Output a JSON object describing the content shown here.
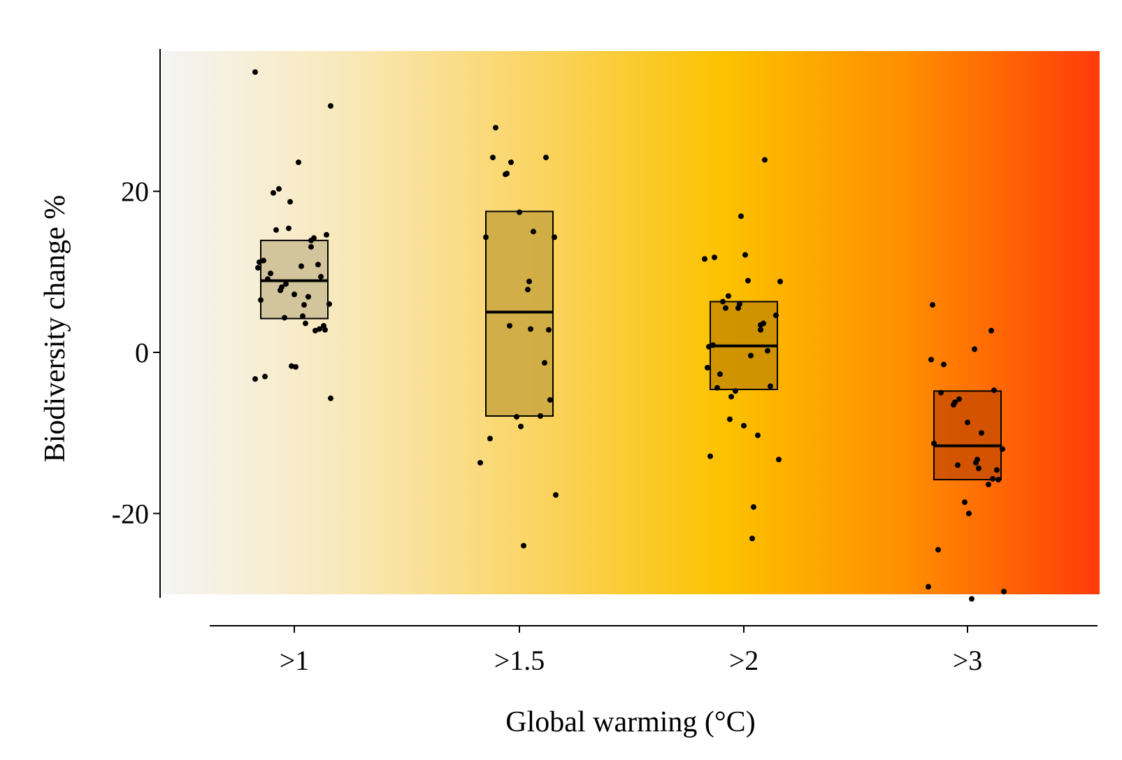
{
  "chart_data": {
    "type": "box",
    "xlabel": "Global warming (°C)",
    "ylabel": "Biodiversity change %",
    "categories": [
      ">1",
      ">1.5",
      ">2",
      ">3"
    ],
    "ylim": [
      -30.5,
      37
    ],
    "yticks": [
      -20,
      0,
      20
    ],
    "background_gradient": [
      "#f4f4f4",
      "#f9e8b8",
      "#fad463",
      "#fcc200",
      "#ff8c00",
      "#ff3b0a"
    ],
    "boxes": [
      {
        "category": ">1",
        "q1": 4.2,
        "median": 8.9,
        "q3": 13.9,
        "fill": "#c9bc92"
      },
      {
        "category": ">1.5",
        "q1": -7.9,
        "median": 5.0,
        "q3": 17.5,
        "fill": "#c8a540"
      },
      {
        "category": ">2",
        "q1": -4.6,
        "median": 0.8,
        "q3": 6.3,
        "fill": "#c48a00"
      },
      {
        "category": ">3",
        "q1": -15.8,
        "median": -11.6,
        "q3": -4.8,
        "fill": "#c94d00"
      }
    ],
    "points": [
      {
        "category": ">1",
        "values": [
          34.8,
          30.6,
          23.6,
          20.3,
          19.8,
          18.7,
          15.4,
          15.2,
          14.6,
          14.2,
          13.9,
          13.1,
          11.4,
          11.2,
          10.9,
          10.7,
          10.5,
          9.8,
          9.4,
          9.1,
          8.5,
          8.1,
          7.7,
          7.2,
          6.9,
          6.5,
          6.0,
          5.9,
          4.5,
          4.3,
          3.6,
          3.3,
          2.9,
          2.8,
          2.7,
          -1.7,
          -1.8,
          -3.0,
          -3.3,
          -5.7
        ]
      },
      {
        "category": ">1.5",
        "values": [
          27.9,
          24.2,
          24.2,
          23.6,
          22.2,
          22.1,
          17.4,
          15.0,
          14.3,
          14.3,
          8.8,
          7.8,
          3.3,
          2.9,
          2.8,
          -1.3,
          -5.9,
          -7.9,
          -8.0,
          -9.2,
          -10.7,
          -13.7,
          -17.7,
          -24.0
        ]
      },
      {
        "category": ">2",
        "values": [
          23.9,
          16.9,
          12.1,
          11.8,
          11.6,
          8.8,
          8.9,
          7.0,
          6.3,
          6.0,
          5.5,
          5.5,
          4.6,
          3.6,
          3.4,
          2.8,
          0.9,
          0.7,
          0.2,
          -0.4,
          -1.9,
          -2.7,
          -4.2,
          -4.4,
          -4.8,
          -5.5,
          -8.3,
          -9.1,
          -10.3,
          -12.9,
          -13.3,
          -19.2,
          -23.1
        ]
      },
      {
        "category": ">3",
        "values": [
          5.9,
          2.7,
          0.4,
          -0.9,
          -1.5,
          -4.7,
          -5.0,
          -5.8,
          -6.2,
          -6.5,
          -8.7,
          -10.0,
          -11.3,
          -12.0,
          -13.3,
          -13.7,
          -14.0,
          -14.4,
          -14.6,
          -15.7,
          -15.8,
          -16.4,
          -18.6,
          -20.0,
          -24.5,
          -29.1,
          -29.7,
          -30.6
        ]
      }
    ]
  }
}
